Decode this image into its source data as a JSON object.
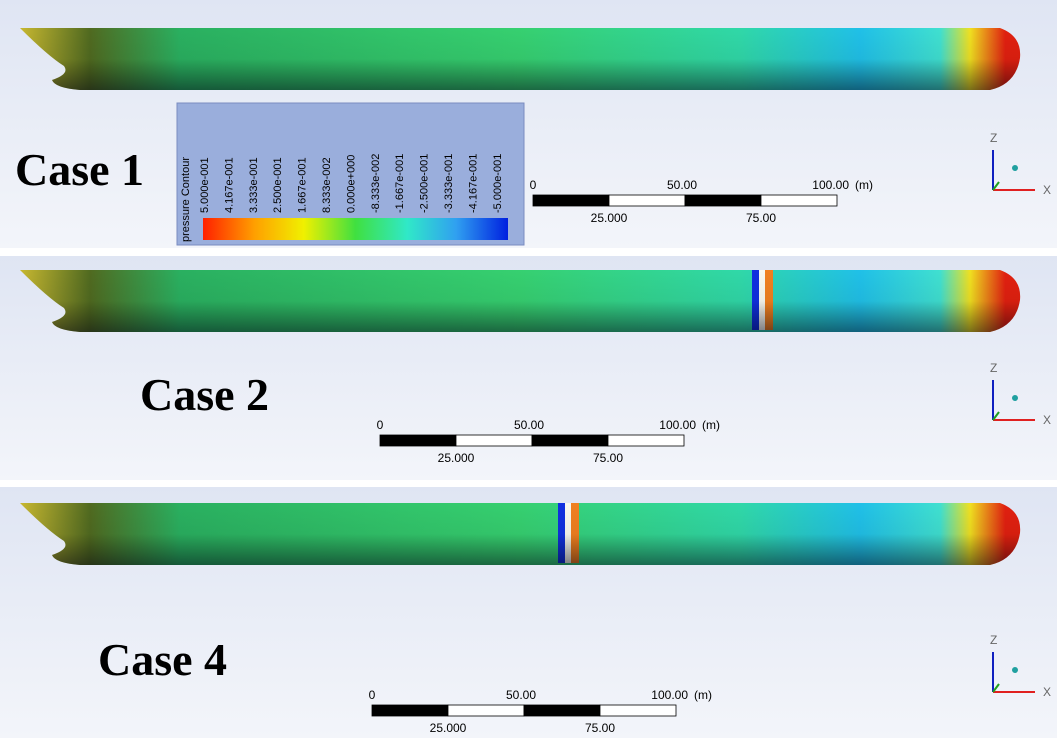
{
  "legend": {
    "title": "pressure Contour",
    "labels": [
      "5.000e-001",
      "4.167e-001",
      "3.333e-001",
      "2.500e-001",
      "1.667e-001",
      "8.333e-002",
      "0.000e+000",
      "-8.333e-002",
      "-1.667e-001",
      "-2.500e-001",
      "-3.333e-001",
      "-4.167e-001",
      "-5.000e-001"
    ]
  },
  "panels": [
    {
      "label": "Case 1",
      "scale": {
        "top": [
          "0",
          "50.00",
          "100.00"
        ],
        "unit": "(m)",
        "bottom": [
          "25.000",
          "75.00"
        ]
      },
      "axes": {
        "z": "Z",
        "x": "X"
      }
    },
    {
      "label": "Case 2",
      "scale": {
        "top": [
          "0",
          "50.00",
          "100.00"
        ],
        "unit": "(m)",
        "bottom": [
          "25.000",
          "75.00"
        ]
      },
      "axes": {
        "z": "Z",
        "x": "X"
      }
    },
    {
      "label": "Case 4",
      "scale": {
        "top": [
          "0",
          "50.00",
          "100.00"
        ],
        "unit": "(m)",
        "bottom": [
          "25.000",
          "75.00"
        ]
      },
      "axes": {
        "z": "Z",
        "x": "X"
      }
    }
  ]
}
